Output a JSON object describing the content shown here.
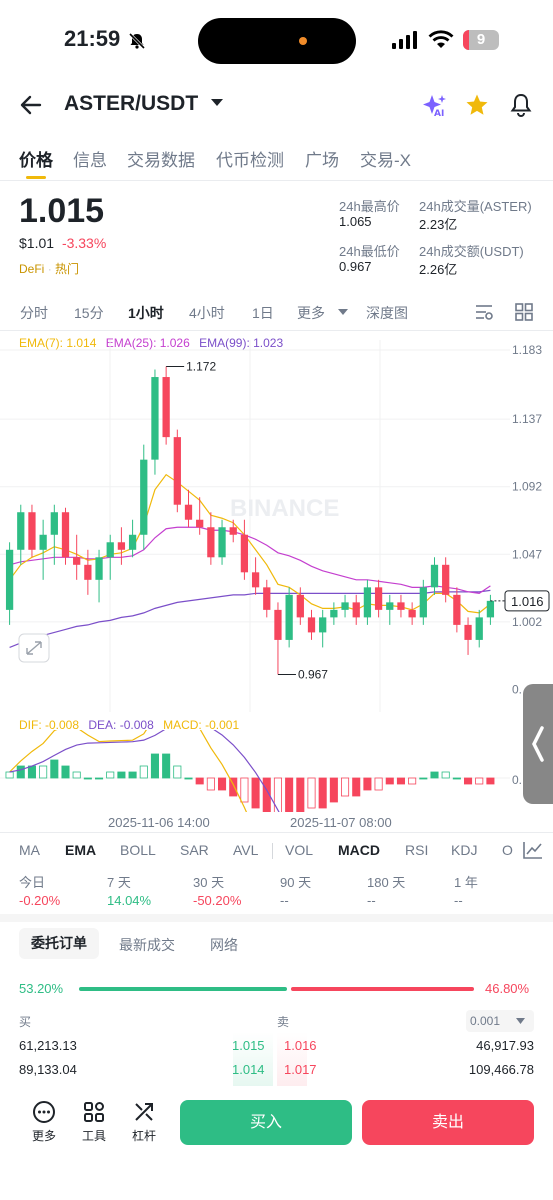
{
  "status_bar": {
    "time": "21:59",
    "battery": "9"
  },
  "header": {
    "pair": "ASTER/USDT",
    "ai_label": "AI"
  },
  "tabs": [
    "价格",
    "信息",
    "交易数据",
    "代币检测",
    "广场",
    "交易-X"
  ],
  "price": {
    "last": "1.015",
    "usd": "$1.01",
    "change": "-3.33%",
    "tag1": "DeFi",
    "tag2": "热门",
    "high_label": "24h最高价",
    "high": "1.065",
    "low_label": "24h最低价",
    "low": "0.967",
    "vol_label": "24h成交量(ASTER)",
    "vol": "2.23亿",
    "amt_label": "24h成交额(USDT)",
    "amt": "2.26亿"
  },
  "timeframes": [
    "分时",
    "15分",
    "1小时",
    "4小时",
    "1日",
    "更多",
    "深度图"
  ],
  "chart": {
    "ema7": "EMA(7): 1.014",
    "ema25": "EMA(25): 1.026",
    "ema99": "EMA(99): 1.023",
    "y_labels": [
      "1.183",
      "1.137",
      "1.092",
      "1.047",
      "1.002",
      "0."
    ],
    "high_marker": "1.172",
    "low_marker": "0.967",
    "current": "1.016",
    "watermark": "BINANCE",
    "macd_dif": "DIF: -0.008",
    "macd_dea": "DEA: -0.008",
    "macd_val": "MACD: -0.001",
    "macd_y": "0.",
    "x_labels": [
      "2025-11-06 14:00",
      "2025-11-07 08:00"
    ]
  },
  "chart_data": {
    "type": "candlestick",
    "ylim": [
      0.95,
      1.183
    ],
    "candles": [
      [
        1.01,
        1.055,
        1.0,
        1.05
      ],
      [
        1.05,
        1.08,
        1.04,
        1.075
      ],
      [
        1.075,
        1.08,
        1.045,
        1.05
      ],
      [
        1.05,
        1.07,
        1.03,
        1.06
      ],
      [
        1.06,
        1.08,
        1.04,
        1.075
      ],
      [
        1.075,
        1.078,
        1.04,
        1.045
      ],
      [
        1.045,
        1.06,
        1.03,
        1.04
      ],
      [
        1.04,
        1.05,
        1.02,
        1.03
      ],
      [
        1.03,
        1.05,
        1.015,
        1.045
      ],
      [
        1.045,
        1.06,
        1.03,
        1.055
      ],
      [
        1.055,
        1.065,
        1.04,
        1.05
      ],
      [
        1.05,
        1.07,
        1.045,
        1.06
      ],
      [
        1.06,
        1.12,
        1.05,
        1.11
      ],
      [
        1.11,
        1.17,
        1.1,
        1.165
      ],
      [
        1.165,
        1.172,
        1.12,
        1.125
      ],
      [
        1.125,
        1.13,
        1.075,
        1.08
      ],
      [
        1.08,
        1.09,
        1.065,
        1.07
      ],
      [
        1.07,
        1.085,
        1.06,
        1.065
      ],
      [
        1.065,
        1.075,
        1.04,
        1.045
      ],
      [
        1.045,
        1.07,
        1.04,
        1.065
      ],
      [
        1.065,
        1.07,
        1.055,
        1.06
      ],
      [
        1.06,
        1.07,
        1.03,
        1.035
      ],
      [
        1.035,
        1.045,
        1.02,
        1.025
      ],
      [
        1.025,
        1.03,
        1.005,
        1.01
      ],
      [
        1.01,
        1.015,
        0.967,
        0.99
      ],
      [
        0.99,
        1.025,
        0.985,
        1.02
      ],
      [
        1.02,
        1.025,
        1.0,
        1.005
      ],
      [
        1.005,
        1.01,
        0.99,
        0.995
      ],
      [
        0.995,
        1.01,
        0.985,
        1.005
      ],
      [
        1.005,
        1.015,
        1.0,
        1.01
      ],
      [
        1.01,
        1.02,
        1.005,
        1.015
      ],
      [
        1.015,
        1.02,
        1.0,
        1.005
      ],
      [
        1.005,
        1.03,
        1.0,
        1.025
      ],
      [
        1.025,
        1.03,
        1.005,
        1.01
      ],
      [
        1.01,
        1.02,
        1.0,
        1.015
      ],
      [
        1.015,
        1.02,
        1.005,
        1.01
      ],
      [
        1.01,
        1.015,
        1.0,
        1.005
      ],
      [
        1.005,
        1.03,
        1.0,
        1.025
      ],
      [
        1.025,
        1.045,
        1.02,
        1.04
      ],
      [
        1.04,
        1.045,
        1.015,
        1.02
      ],
      [
        1.02,
        1.025,
        0.995,
        1.0
      ],
      [
        1.0,
        1.005,
        0.98,
        0.99
      ],
      [
        0.99,
        1.01,
        0.985,
        1.005
      ],
      [
        1.005,
        1.02,
        1.0,
        1.016
      ]
    ],
    "ema7": [
      1.03,
      1.04,
      1.045,
      1.048,
      1.052,
      1.05,
      1.047,
      1.043,
      1.044,
      1.047,
      1.048,
      1.051,
      1.066,
      1.09,
      1.1,
      1.095,
      1.089,
      1.083,
      1.073,
      1.071,
      1.068,
      1.06,
      1.05,
      1.04,
      1.027,
      1.025,
      1.02,
      1.014,
      1.011,
      1.011,
      1.012,
      1.01,
      1.014,
      1.013,
      1.013,
      1.012,
      1.01,
      1.014,
      1.021,
      1.021,
      1.016,
      1.009,
      1.008,
      1.014
    ],
    "ema25": [
      1.04,
      1.042,
      1.043,
      1.044,
      1.045,
      1.045,
      1.045,
      1.044,
      1.044,
      1.045,
      1.045,
      1.046,
      1.05,
      1.058,
      1.064,
      1.065,
      1.065,
      1.065,
      1.063,
      1.063,
      1.062,
      1.06,
      1.057,
      1.053,
      1.048,
      1.046,
      1.043,
      1.039,
      1.036,
      1.034,
      1.032,
      1.03,
      1.03,
      1.029,
      1.028,
      1.027,
      1.025,
      1.025,
      1.026,
      1.025,
      1.024,
      1.022,
      1.021,
      1.026
    ],
    "ema99": [
      0.985,
      0.988,
      0.99,
      0.993,
      0.995,
      0.997,
      0.999,
      1.0,
      1.002,
      1.003,
      1.005,
      1.006,
      1.008,
      1.011,
      1.013,
      1.015,
      1.016,
      1.017,
      1.018,
      1.019,
      1.02,
      1.02,
      1.021,
      1.021,
      1.021,
      1.021,
      1.021,
      1.021,
      1.021,
      1.021,
      1.021,
      1.021,
      1.021,
      1.021,
      1.021,
      1.021,
      1.021,
      1.021,
      1.022,
      1.022,
      1.022,
      1.022,
      1.022,
      1.023
    ],
    "macd_hist": [
      0.001,
      0.002,
      0.002,
      0.002,
      0.003,
      0.002,
      0.001,
      0.0,
      0.0,
      0.001,
      0.001,
      0.001,
      0.002,
      0.004,
      0.004,
      0.002,
      0.0,
      -0.001,
      -0.002,
      -0.002,
      -0.003,
      -0.004,
      -0.005,
      -0.006,
      -0.007,
      -0.006,
      -0.006,
      -0.005,
      -0.005,
      -0.004,
      -0.003,
      -0.003,
      -0.002,
      -0.002,
      -0.001,
      -0.001,
      -0.001,
      0.0,
      0.001,
      0.001,
      0.0,
      -0.001,
      -0.001,
      -0.001
    ]
  },
  "indicators": [
    "MA",
    "EMA",
    "BOLL",
    "SAR",
    "AVL",
    "VOL",
    "MACD",
    "RSI",
    "KDJ",
    "O"
  ],
  "performance": [
    {
      "label": "今日",
      "value": "-0.20%",
      "color": "#f6465d"
    },
    {
      "label": "7 天",
      "value": "14.04%",
      "color": "#2ebd85"
    },
    {
      "label": "30 天",
      "value": "-50.20%",
      "color": "#f6465d"
    },
    {
      "label": "90 天",
      "value": "--",
      "color": "#707a8a"
    },
    {
      "label": "180 天",
      "value": "--",
      "color": "#707a8a"
    },
    {
      "label": "1 年",
      "value": "--",
      "color": "#707a8a"
    }
  ],
  "orderbook": {
    "tabs": [
      "委托订单",
      "最新成交",
      "网络"
    ],
    "buy_pct": "53.20%",
    "sell_pct": "46.80%",
    "buy_label": "买",
    "sell_label": "卖",
    "precision": "0.001",
    "rows": [
      {
        "bid_qty": "61,213.13",
        "bid": "1.015",
        "ask": "1.016",
        "ask_qty": "46,917.93"
      },
      {
        "bid_qty": "89,133.04",
        "bid": "1.014",
        "ask": "1.017",
        "ask_qty": "109,466.78"
      }
    ]
  },
  "bottom": {
    "more": "更多",
    "tools": "工具",
    "leverage": "杠杆",
    "buy": "买入",
    "sell": "卖出"
  }
}
